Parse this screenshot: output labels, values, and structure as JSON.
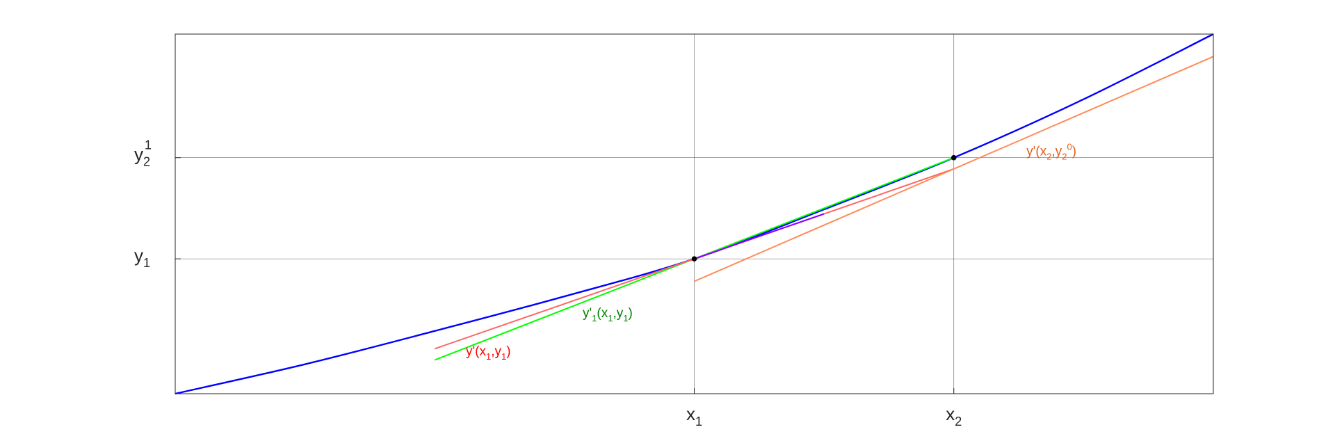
{
  "chart_data": {
    "type": "line",
    "title": "",
    "xlabel": "",
    "ylabel": "",
    "xlim": [
      0,
      4
    ],
    "ylim": [
      0,
      1.6
    ],
    "grid": "at labeled ticks",
    "legend": "none",
    "x_ticks": [
      {
        "value": 2.0,
        "base": "x",
        "sub": "1",
        "sup": ""
      },
      {
        "value": 3.0,
        "base": "x",
        "sub": "2",
        "sup": ""
      }
    ],
    "y_ticks": [
      {
        "value": 0.6,
        "base": "y",
        "sub": "1",
        "sup": ""
      },
      {
        "value": 1.05,
        "base": "y",
        "sub": "2",
        "sup": "1"
      }
    ],
    "series": [
      {
        "color": "#0000ff",
        "x": [
          0,
          0.5,
          1.0,
          1.5,
          2.0,
          2.5,
          3.0,
          3.5,
          4.0
        ],
        "y": [
          0,
          0.131,
          0.279,
          0.433,
          0.6,
          0.82,
          1.05,
          1.31,
          1.6
        ]
      },
      {
        "color": "#00ff00",
        "x": [
          1.0,
          3.0
        ],
        "y": [
          0.15,
          1.05
        ]
      },
      {
        "color": "#ff6666",
        "x": [
          1.0,
          2.0
        ],
        "y": [
          0.2,
          0.6
        ]
      },
      {
        "color": "#ff6666",
        "x": [
          2.0,
          3.0
        ],
        "y": [
          0.6,
          1.0
        ]
      },
      {
        "color": "#ff8c5a",
        "x": [
          2.0,
          4.0
        ],
        "y": [
          0.5,
          1.5
        ]
      },
      {
        "color": "#8b00ff",
        "x": [
          2.0,
          2.5
        ],
        "y": [
          0.6,
          0.8
        ]
      }
    ],
    "points": [
      {
        "x": 2.0,
        "y": 0.6,
        "color": "#000000"
      },
      {
        "x": 3.0,
        "y": 1.05,
        "color": "#000000"
      }
    ],
    "annotations": [
      {
        "parts": [
          [
            "y'",
            ""
          ],
          [
            "1",
            "sub"
          ],
          [
            "(x",
            ""
          ],
          [
            "1",
            "sub"
          ],
          [
            ",y",
            ""
          ],
          [
            "1",
            "sub"
          ],
          [
            ")",
            ""
          ]
        ],
        "x": 1.57,
        "y": 0.34,
        "color": "#008000"
      },
      {
        "parts": [
          [
            "y'(x",
            ""
          ],
          [
            "1",
            "sub"
          ],
          [
            ",y",
            ""
          ],
          [
            "1",
            "sub"
          ],
          [
            ")",
            ""
          ]
        ],
        "x": 1.12,
        "y": 0.17,
        "color": "#ff0000"
      },
      {
        "parts": [
          [
            "y'(x",
            ""
          ],
          [
            "2",
            "sub"
          ],
          [
            ",y",
            ""
          ],
          [
            "2",
            "sub"
          ],
          [
            "0",
            "sup"
          ],
          [
            ")",
            ""
          ]
        ],
        "x": 3.28,
        "y": 1.06,
        "color": "#e06020"
      }
    ]
  }
}
